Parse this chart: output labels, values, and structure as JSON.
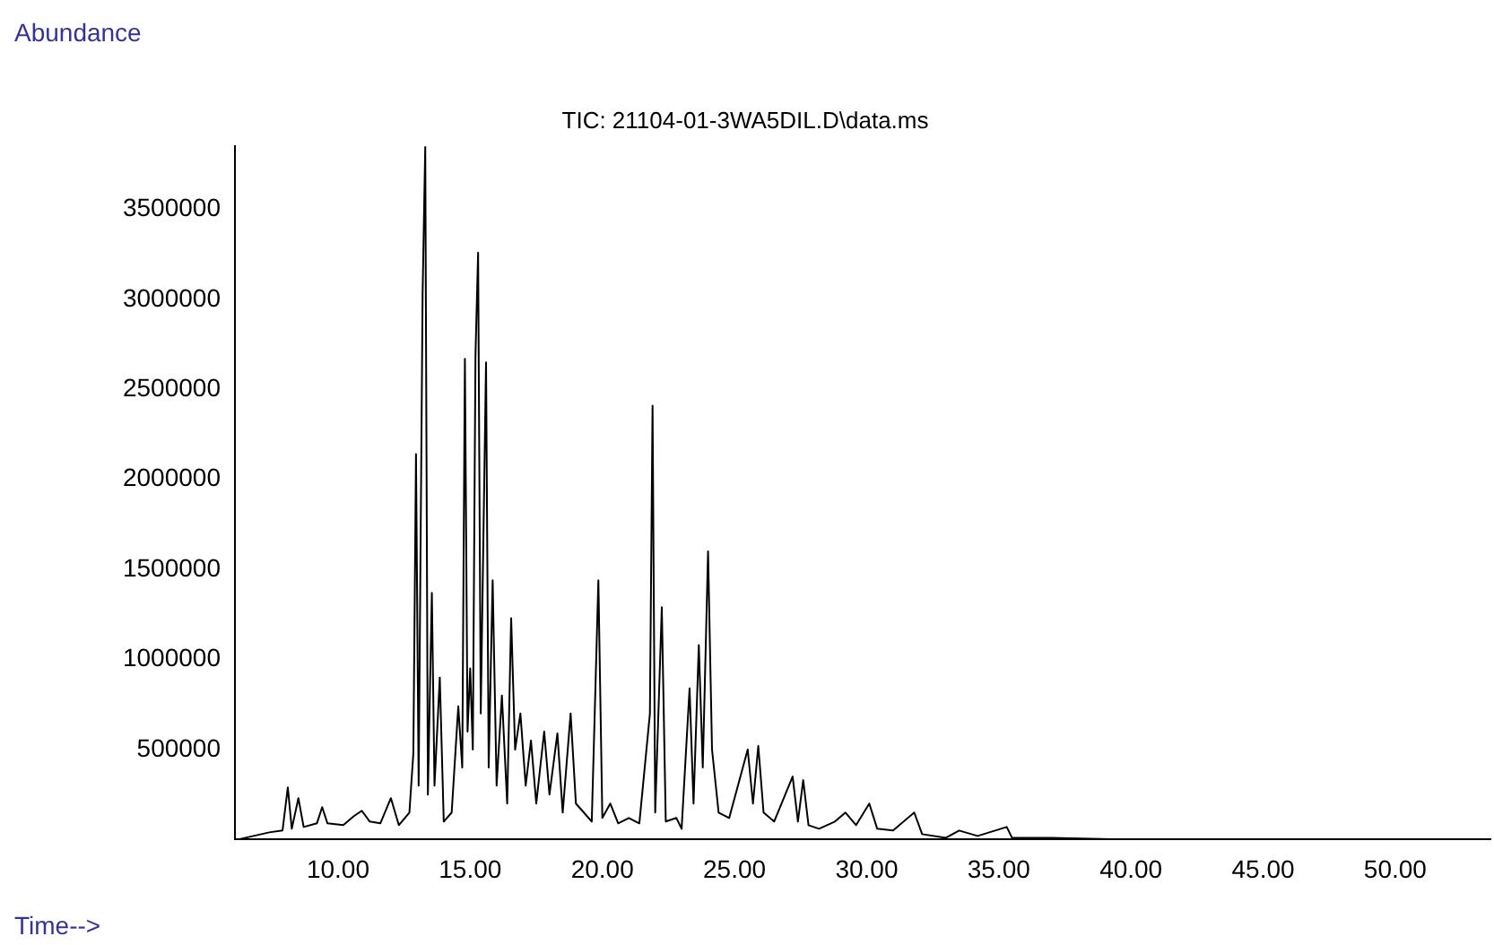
{
  "chart_data": {
    "type": "line",
    "title": "TIC: 21104-01-3WA5DIL.D\\data.ms",
    "xlabel": "Time-->",
    "ylabel": "Abundance",
    "xlim": [
      6.1,
      53.6
    ],
    "ylim": [
      0,
      3850000
    ],
    "xticks": [
      {
        "value": 10,
        "label": "10.00"
      },
      {
        "value": 15,
        "label": "15.00"
      },
      {
        "value": 20,
        "label": "20.00"
      },
      {
        "value": 25,
        "label": "25.00"
      },
      {
        "value": 30,
        "label": "30.00"
      },
      {
        "value": 35,
        "label": "35.00"
      },
      {
        "value": 40,
        "label": "40.00"
      },
      {
        "value": 45,
        "label": "45.00"
      },
      {
        "value": 50,
        "label": "50.00"
      }
    ],
    "yticks": [
      500000,
      1000000,
      1500000,
      2000000,
      2500000,
      3000000,
      3500000
    ],
    "grid": false,
    "legend": false,
    "marker": "none",
    "line_style": "solid",
    "series": [
      {
        "color": "#000000",
        "x": [
          6.2,
          6.8,
          7.4,
          7.9,
          8.1,
          8.25,
          8.5,
          8.7,
          9.2,
          9.4,
          9.6,
          10.2,
          10.6,
          10.9,
          11.2,
          11.6,
          12.0,
          12.3,
          12.7,
          12.85,
          12.95,
          13.05,
          13.2,
          13.3,
          13.4,
          13.55,
          13.65,
          13.85,
          14.0,
          14.3,
          14.55,
          14.7,
          14.8,
          14.9,
          15.0,
          15.1,
          15.2,
          15.3,
          15.4,
          15.6,
          15.7,
          15.85,
          16.0,
          16.2,
          16.4,
          16.55,
          16.7,
          16.9,
          17.1,
          17.3,
          17.5,
          17.8,
          18.0,
          18.3,
          18.5,
          18.8,
          19.0,
          19.3,
          19.6,
          19.85,
          20.0,
          20.3,
          20.6,
          21.0,
          21.4,
          21.8,
          21.9,
          22.0,
          22.25,
          22.4,
          22.8,
          23.0,
          23.3,
          23.45,
          23.65,
          23.8,
          24.0,
          24.15,
          24.4,
          24.8,
          25.5,
          25.7,
          25.9,
          26.1,
          26.5,
          27.2,
          27.4,
          27.6,
          27.8,
          28.2,
          28.8,
          29.2,
          29.6,
          30.1,
          30.4,
          31.0,
          31.8,
          32.1,
          33.0,
          33.5,
          34.2,
          35.3,
          35.5,
          37.0,
          40.0,
          40.2,
          53.5
        ],
        "values": [
          0,
          20000,
          40000,
          50000,
          290000,
          60000,
          230000,
          70000,
          90000,
          180000,
          90000,
          80000,
          130000,
          160000,
          100000,
          90000,
          230000,
          80000,
          150000,
          480000,
          2140000,
          300000,
          3030000,
          3850000,
          250000,
          1370000,
          300000,
          900000,
          100000,
          150000,
          740000,
          400000,
          2670000,
          600000,
          950000,
          500000,
          2690000,
          3260000,
          700000,
          2650000,
          400000,
          1440000,
          300000,
          800000,
          200000,
          1230000,
          500000,
          700000,
          300000,
          550000,
          200000,
          600000,
          250000,
          590000,
          150000,
          700000,
          200000,
          150000,
          100000,
          1440000,
          120000,
          200000,
          90000,
          120000,
          90000,
          700000,
          2410000,
          150000,
          1290000,
          100000,
          120000,
          60000,
          840000,
          200000,
          1080000,
          400000,
          1600000,
          500000,
          150000,
          120000,
          500000,
          200000,
          520000,
          150000,
          100000,
          350000,
          100000,
          330000,
          80000,
          60000,
          100000,
          150000,
          80000,
          200000,
          60000,
          50000,
          150000,
          30000,
          10000,
          50000,
          20000,
          70000,
          10000,
          10000,
          0,
          0,
          0
        ]
      }
    ]
  }
}
